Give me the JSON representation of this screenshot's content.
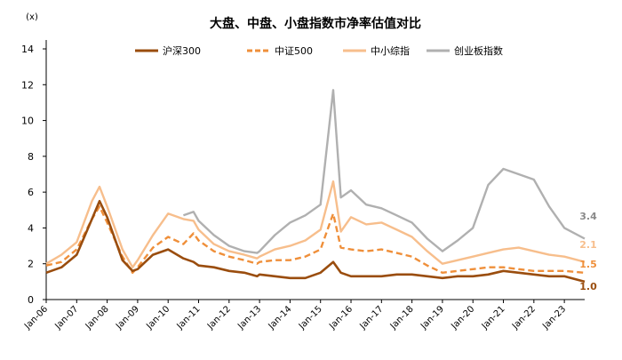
{
  "chart_data": {
    "type": "line",
    "title": "大盘、中盘、小盘指数市净率估值对比",
    "ylabel": "(x)",
    "xlabel": "",
    "ylim": [
      0,
      14
    ],
    "yticks": [
      "0",
      "2",
      "4",
      "6",
      "8",
      "10",
      "12",
      "14"
    ],
    "xticks": [
      "Jan-06",
      "Jan-07",
      "Jan-08",
      "Jan-09",
      "Jan-10",
      "Jan-11",
      "Jan-12",
      "Jan-13",
      "Jan-14",
      "Jan-15",
      "Jan-16",
      "Jan-17",
      "Jan-18",
      "Jan-19",
      "Jan-20",
      "Jan-21",
      "Jan-22",
      "Jan-23"
    ],
    "grid": false,
    "legend": "top",
    "x": [
      "2006-01",
      "2006-07",
      "2007-01",
      "2007-07",
      "2007-10",
      "2008-01",
      "2008-07",
      "2008-11",
      "2009-01",
      "2009-07",
      "2010-01",
      "2010-07",
      "2010-11",
      "2011-01",
      "2011-07",
      "2012-01",
      "2012-07",
      "2012-12",
      "2013-01",
      "2013-07",
      "2014-01",
      "2014-07",
      "2015-01",
      "2015-06",
      "2015-09",
      "2016-01",
      "2016-07",
      "2017-01",
      "2017-07",
      "2018-01",
      "2018-07",
      "2019-01",
      "2019-07",
      "2020-01",
      "2020-07",
      "2021-01",
      "2021-07",
      "2022-01",
      "2022-07",
      "2023-01",
      "2023-09"
    ],
    "series": [
      {
        "name": "沪深300",
        "color": "#9a4d0e",
        "dash": "solid",
        "values": [
          1.5,
          1.8,
          2.5,
          4.5,
          5.5,
          4.6,
          2.2,
          1.6,
          1.7,
          2.5,
          2.8,
          2.3,
          2.1,
          1.9,
          1.8,
          1.6,
          1.5,
          1.3,
          1.4,
          1.3,
          1.2,
          1.2,
          1.5,
          2.1,
          1.5,
          1.3,
          1.3,
          1.3,
          1.4,
          1.4,
          1.3,
          1.2,
          1.3,
          1.3,
          1.4,
          1.6,
          1.5,
          1.4,
          1.3,
          1.3,
          1.0
        ],
        "end_label": "1.0"
      },
      {
        "name": "中证500",
        "color": "#ef8f3a",
        "dash": "dashed",
        "values": [
          1.9,
          2.1,
          2.8,
          4.5,
          5.2,
          4.3,
          2.4,
          1.5,
          1.8,
          2.9,
          3.5,
          3.1,
          3.7,
          3.3,
          2.7,
          2.4,
          2.2,
          2.0,
          2.1,
          2.2,
          2.2,
          2.4,
          2.8,
          4.8,
          2.9,
          2.8,
          2.7,
          2.8,
          2.6,
          2.4,
          1.9,
          1.5,
          1.6,
          1.7,
          1.8,
          1.8,
          1.7,
          1.6,
          1.6,
          1.6,
          1.5
        ],
        "end_label": "1.5"
      },
      {
        "name": "中小综指",
        "color": "#f7be8c",
        "dash": "solid",
        "values": [
          2.0,
          2.5,
          3.2,
          5.5,
          6.3,
          5.2,
          2.8,
          1.8,
          2.2,
          3.6,
          4.8,
          4.5,
          4.4,
          3.9,
          3.1,
          2.7,
          2.5,
          2.3,
          2.4,
          2.8,
          3.0,
          3.3,
          3.9,
          6.6,
          3.8,
          4.6,
          4.2,
          4.3,
          3.9,
          3.5,
          2.7,
          2.0,
          2.2,
          2.4,
          2.6,
          2.8,
          2.9,
          2.7,
          2.5,
          2.4,
          2.1
        ],
        "end_label": "2.1"
      },
      {
        "name": "创业板指数",
        "color": "#b0b0b0",
        "dash": "solid",
        "values": [
          null,
          null,
          null,
          null,
          null,
          null,
          null,
          null,
          null,
          null,
          null,
          4.7,
          4.9,
          4.4,
          3.6,
          3.0,
          2.7,
          2.6,
          2.7,
          3.6,
          4.3,
          4.7,
          5.3,
          11.7,
          5.7,
          6.1,
          5.3,
          5.1,
          4.7,
          4.3,
          3.4,
          2.7,
          3.3,
          4.0,
          6.4,
          7.3,
          7.0,
          6.7,
          5.2,
          4.0,
          3.4
        ],
        "end_label": "3.4"
      }
    ]
  }
}
